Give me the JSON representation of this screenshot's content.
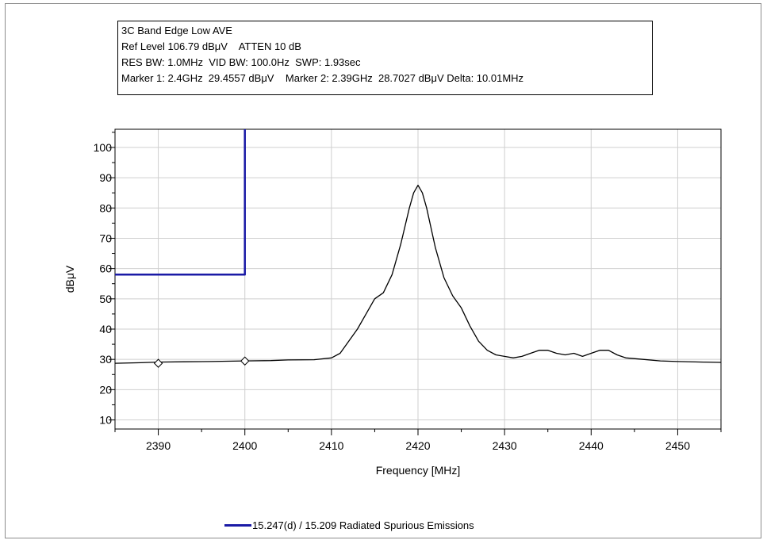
{
  "header": {
    "title": "3C Band Edge Low AVE",
    "line2": "Ref Level 106.79 dBμV    ATTEN 10 dB",
    "line3": "RES BW: 1.0MHz  VID BW: 100.0Hz  SWP: 1.93sec",
    "line4": "Marker 1: 2.4GHz  29.4557 dBμV    Marker 2: 2.39GHz  28.7027 dBμV Delta: 10.01MHz"
  },
  "legend": {
    "label": "15.247(d) / 15.209 Radiated Spurious Emissions"
  },
  "colors": {
    "limit_line": "#1a1aa6",
    "trace": "#000000",
    "grid": "#cfcfcf"
  },
  "chart_data": {
    "type": "line",
    "xlabel": "Frequency [MHz]",
    "ylabel": "dBμV",
    "xlim": [
      2385,
      2455
    ],
    "ylim": [
      7,
      106
    ],
    "xticks": [
      2390,
      2400,
      2410,
      2420,
      2430,
      2440,
      2450
    ],
    "yticks": [
      10,
      20,
      30,
      40,
      50,
      60,
      70,
      80,
      90,
      100
    ],
    "grid": true,
    "legend_position": "bottom-center",
    "series": [
      {
        "name": "15.247(d) / 15.209 Radiated Spurious Emissions",
        "role": "limit",
        "x": [
          2385,
          2400,
          2400
        ],
        "y": [
          58,
          58,
          106
        ]
      },
      {
        "role": "trace",
        "x": [
          2385,
          2388,
          2390,
          2393,
          2396,
          2400,
          2403,
          2405,
          2408,
          2410,
          2411,
          2412,
          2413,
          2414,
          2415,
          2416,
          2417,
          2418,
          2419,
          2419.5,
          2420,
          2420.5,
          2421,
          2422,
          2423,
          2424,
          2425,
          2426,
          2427,
          2428,
          2429,
          2430,
          2431,
          2432,
          2433,
          2434,
          2435,
          2436,
          2437,
          2438,
          2439,
          2440,
          2441,
          2442,
          2443,
          2444,
          2446,
          2448,
          2450,
          2453,
          2455
        ],
        "y": [
          28.7,
          28.9,
          29.1,
          29.2,
          29.3,
          29.5,
          29.6,
          29.8,
          29.9,
          30.5,
          32,
          36,
          40,
          45,
          50,
          52,
          58,
          68,
          80,
          85,
          87.5,
          85,
          80,
          67,
          57,
          51,
          47,
          41,
          36,
          33,
          31.5,
          31,
          30.5,
          31,
          32,
          33,
          33,
          32,
          31.5,
          32,
          31,
          32,
          33,
          33,
          31.5,
          30.5,
          30,
          29.5,
          29.3,
          29.1,
          29.0
        ]
      }
    ],
    "markers": [
      {
        "label": "Marker 1",
        "x": 2400,
        "y": 29.4557
      },
      {
        "label": "Marker 2",
        "x": 2390,
        "y": 28.7027
      }
    ]
  }
}
